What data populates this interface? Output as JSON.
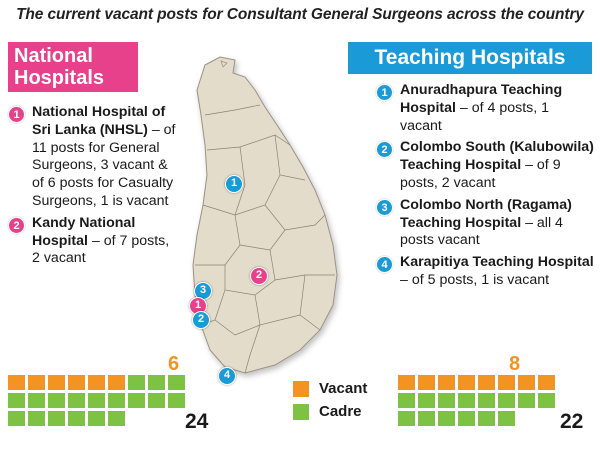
{
  "title": "The current vacant posts for Consultant General Surgeons across the country",
  "national": {
    "header_line1": "National",
    "header_line2": "Hospitals",
    "items": [
      {
        "num": "1",
        "bold": "National Hospital of Sri Lanka (NHSL)",
        "text": " – of 11 posts for General Surgeons, 3 vacant & of 6 posts for Casualty Surgeons, 1 is vacant"
      },
      {
        "num": "2",
        "bold": "Kandy National Hospital",
        "text": " – of 7 posts, 2 vacant"
      }
    ],
    "vacant_count": "6",
    "cadre_count": "24",
    "cadre_total": 24,
    "vacant_total": 6
  },
  "teaching": {
    "header": "Teaching Hospitals",
    "items": [
      {
        "num": "1",
        "bold": "Anuradhapura Teaching Hospital",
        "text": " – of 4 posts, 1 vacant"
      },
      {
        "num": "2",
        "bold": "Colombo South (Kalubowila) Teaching Hospital",
        "text": " – of 9 posts, 2 vacant"
      },
      {
        "num": "3",
        "bold": "Colombo North (Ragama) Teaching Hospital",
        "text": " – all 4 posts vacant"
      },
      {
        "num": "4",
        "bold": "Karapitiya Teaching Hospital",
        "text": " – of 5 posts, 1 is vacant"
      }
    ],
    "vacant_count": "8",
    "cadre_count": "22",
    "cadre_total": 22,
    "vacant_total": 8
  },
  "legend": {
    "vacant_label": "Vacant",
    "cadre_label": "Cadre",
    "vacant_color": "#f39422",
    "cadre_color": "#7dc242"
  },
  "map_pins": [
    {
      "label": "1",
      "type": "teaching"
    },
    {
      "label": "2",
      "type": "national"
    },
    {
      "label": "3",
      "type": "teaching"
    },
    {
      "label": "1",
      "type": "national"
    },
    {
      "label": "2",
      "type": "teaching"
    },
    {
      "label": "4",
      "type": "teaching"
    }
  ]
}
